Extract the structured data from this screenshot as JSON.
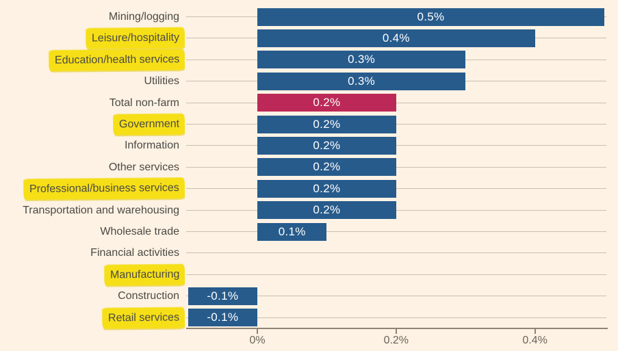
{
  "chart_data": {
    "type": "bar",
    "orientation": "horizontal",
    "title": "",
    "xlabel": "",
    "ylabel": "",
    "categories": [
      "Mining/logging",
      "Leisure/hospitality",
      "Education/health services",
      "Utilities",
      "Total non-farm",
      "Government",
      "Information",
      "Other services",
      "Professional/business services",
      "Transportation and warehousing",
      "Wholesale trade",
      "Financial activities",
      "Manufacturing",
      "Construction",
      "Retail services"
    ],
    "values": [
      0.5,
      0.4,
      0.3,
      0.3,
      0.2,
      0.2,
      0.2,
      0.2,
      0.2,
      0.2,
      0.1,
      0,
      0,
      -0.1,
      -0.1
    ],
    "value_labels": [
      "0.5%",
      "0.4%",
      "0.3%",
      "0.3%",
      "0.2%",
      "0.2%",
      "0.2%",
      "0.2%",
      "0.2%",
      "0.2%",
      "0.1%",
      "",
      "",
      "-0.1%",
      "-0.1%"
    ],
    "highlighted_categories": [
      "Leisure/hospitality",
      "Education/health services",
      "Government",
      "Professional/business services",
      "Manufacturing",
      "Retail services"
    ],
    "emphasized_category": "Total non-farm",
    "x_ticks": [
      "0%",
      "0.2%",
      "0.4%"
    ],
    "x_tick_values": [
      0,
      0.2,
      0.4
    ],
    "xlim": [
      -0.1,
      0.5
    ],
    "unit": "%",
    "legend": "none",
    "grid": "horizontal per-row leader lines",
    "colors": {
      "background": "#fdf2e4",
      "bar_blue": "#275b8c",
      "bar_red": "#bc2958",
      "highlight_yellow": "#f6df17",
      "label_text": "#4b4a45",
      "axis_text": "#6c6459",
      "row_line": "#c9c0af",
      "axis_line": "#8e8472",
      "value_text": "#ffffff"
    }
  }
}
